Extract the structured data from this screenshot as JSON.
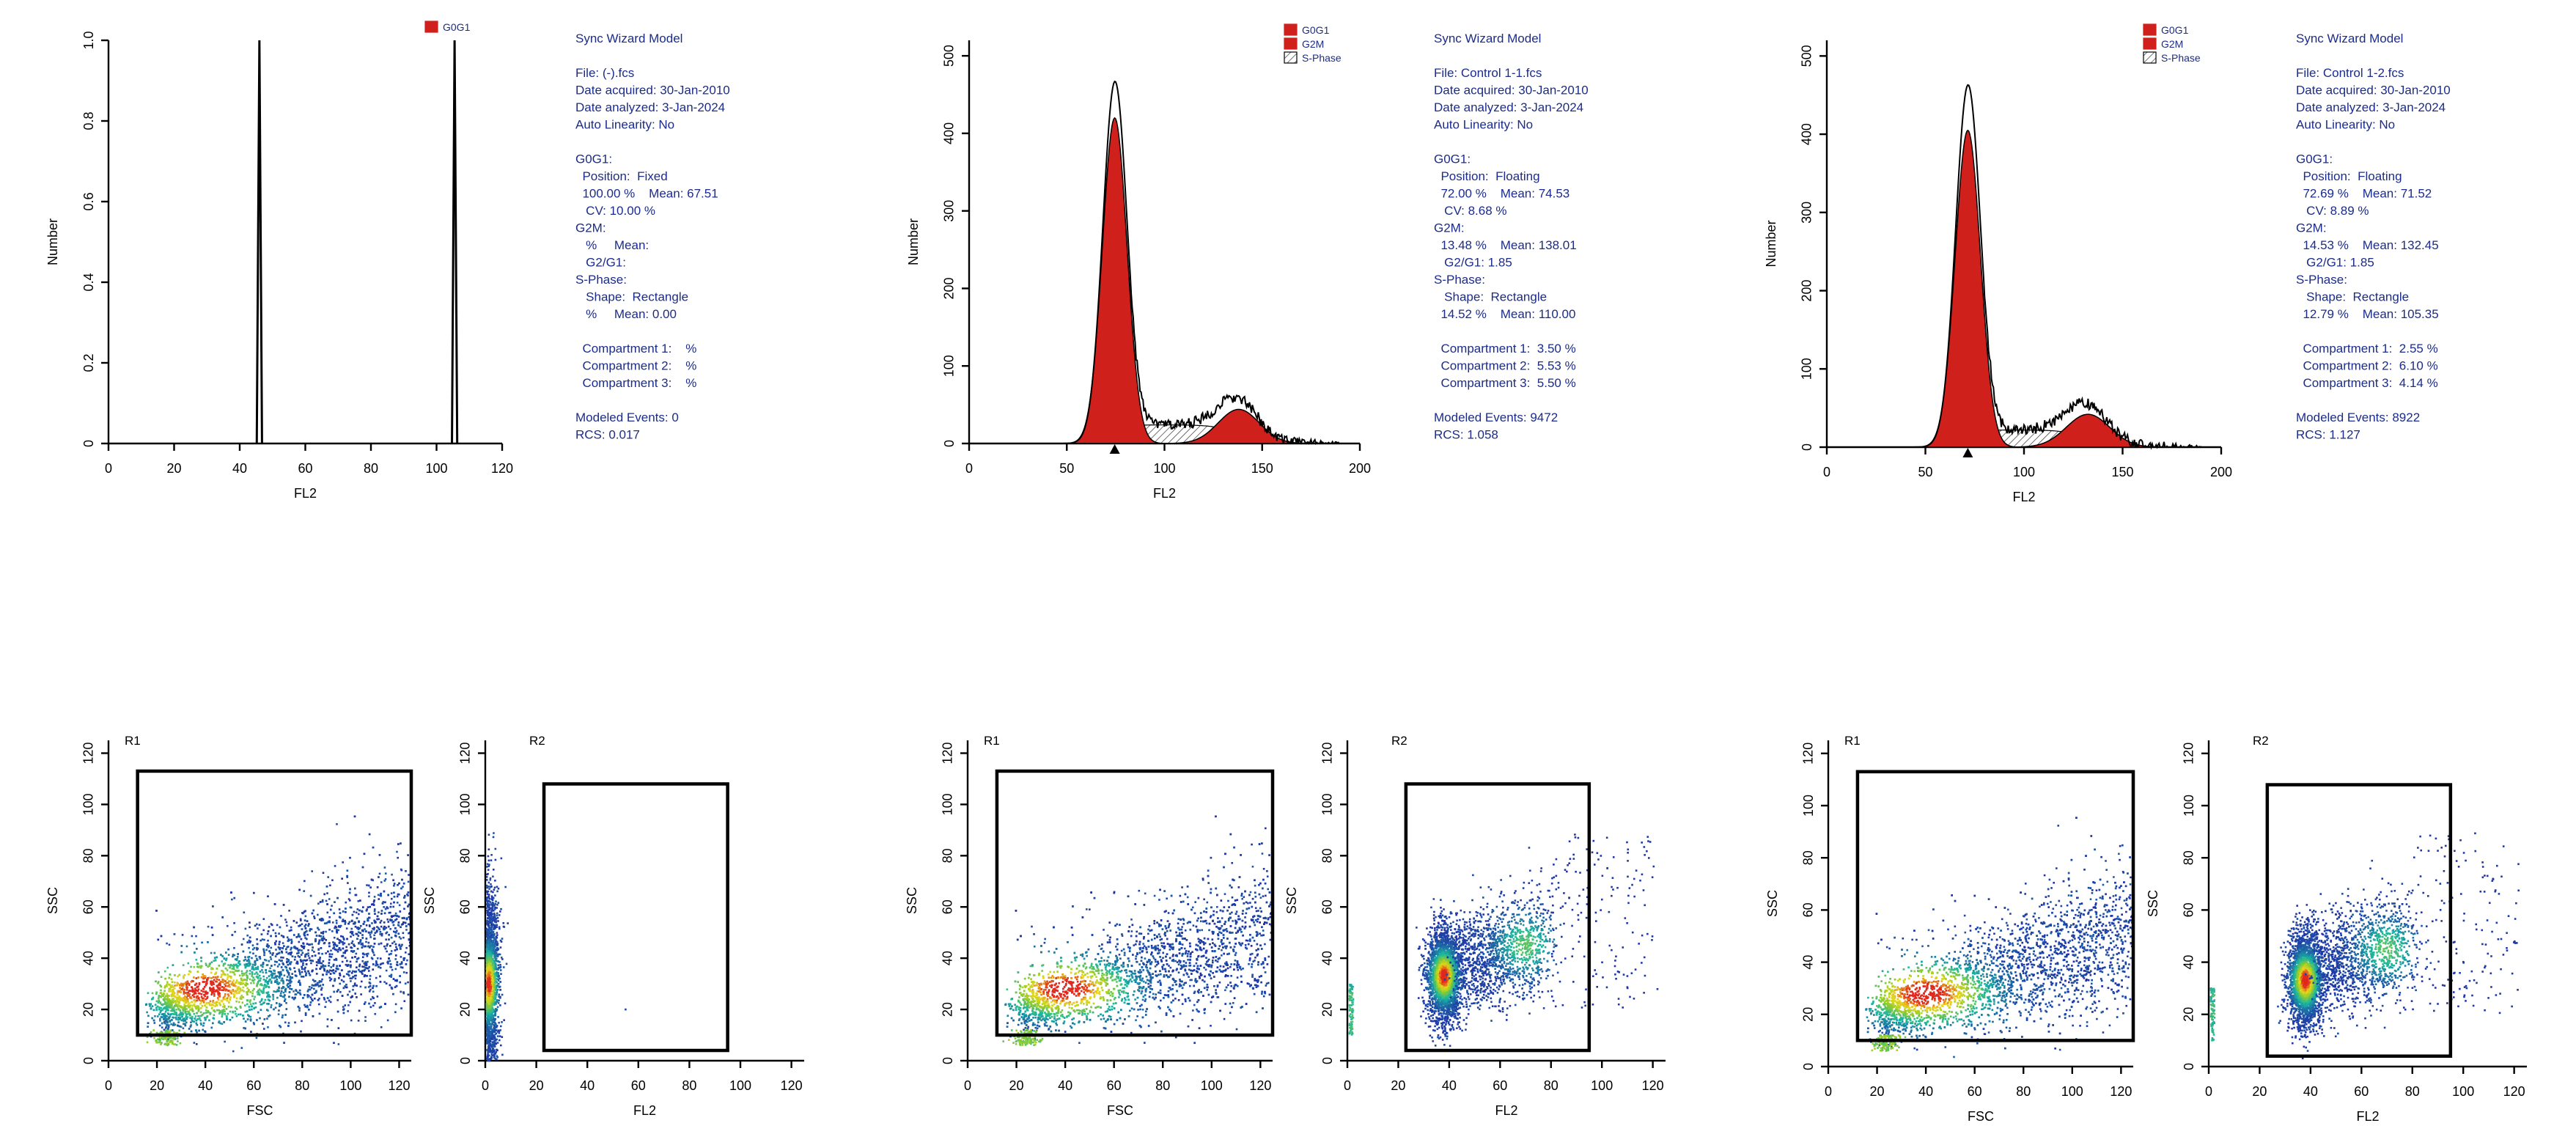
{
  "colors": {
    "g0g1": "#d0201c",
    "g2m": "#d0201c",
    "text_blue": "#1b2c8a",
    "axis": "#000000",
    "density_low": "#1f2fa8",
    "density_mid": "#1ab7a0",
    "density_high": "#e8d81c",
    "density_peak": "#e0281c"
  },
  "chart_data": [
    {
      "id": "hist-1",
      "type": "histogram",
      "xlabel": "FL2",
      "ylabel": "Number",
      "xlim": [
        0,
        120
      ],
      "ylim": [
        0,
        1.0
      ],
      "xticks": [
        0,
        20,
        40,
        60,
        80,
        100,
        120
      ],
      "yticks": [
        0,
        0.2,
        0.4,
        0.6,
        0.8,
        1.0
      ],
      "ytick_labels": [
        "0",
        "0.2",
        "0.4",
        "0.6",
        "0.8",
        "1.0"
      ],
      "legend": [
        "G0G1"
      ],
      "spikes": [
        {
          "x": 46,
          "y": 1.0
        },
        {
          "x": 105.5,
          "y": 1.0
        }
      ],
      "report": [
        "Sync Wizard Model",
        "",
        "File: (-).fcs",
        "Date acquired: 30-Jan-2010",
        "Date analyzed: 3-Jan-2024",
        "Auto Linearity: No",
        "",
        "G0G1:",
        "  Position:  Fixed",
        "  100.00 %    Mean: 67.51",
        "   CV: 10.00 %",
        "G2M:",
        "   %     Mean:",
        "   G2/G1:",
        "S-Phase:",
        "   Shape:  Rectangle",
        "   %     Mean: 0.00",
        "",
        "  Compartment 1:    %",
        "  Compartment 2:    %",
        "  Compartment 3:    %",
        "",
        "Modeled Events: 0",
        "RCS: 0.017"
      ]
    },
    {
      "id": "hist-2",
      "type": "histogram",
      "xlabel": "FL2",
      "ylabel": "Number",
      "xlim": [
        0,
        200
      ],
      "ylim": [
        0,
        520
      ],
      "xticks": [
        0,
        50,
        100,
        150,
        200
      ],
      "yticks": [
        0,
        100,
        200,
        300,
        400,
        500
      ],
      "ytick_labels": [
        "0",
        "100",
        "200",
        "300",
        "400",
        "500"
      ],
      "legend": [
        "G0G1",
        "G2M",
        "S-Phase"
      ],
      "g0g1": {
        "mean": 74.53,
        "peak": 420,
        "sd": 6.3
      },
      "g2m": {
        "mean": 138.01,
        "peak": 44,
        "sd": 10.5
      },
      "sphase": {
        "from": 74.53,
        "to": 138.01,
        "level": 24
      },
      "raw_peak": 455,
      "marker_x": 74.53,
      "report": [
        "Sync Wizard Model",
        "",
        "File: Control 1-1.fcs",
        "Date acquired: 30-Jan-2010",
        "Date analyzed: 3-Jan-2024",
        "Auto Linearity: No",
        "",
        "G0G1:",
        "  Position:  Floating",
        "  72.00 %    Mean: 74.53",
        "   CV: 8.68 %",
        "G2M:",
        "  13.48 %    Mean: 138.01",
        "   G2/G1: 1.85",
        "S-Phase:",
        "   Shape:  Rectangle",
        "  14.52 %    Mean: 110.00",
        "",
        "  Compartment 1:  3.50 %",
        "  Compartment 2:  5.53 %",
        "  Compartment 3:  5.50 %",
        "",
        "Modeled Events: 9472",
        "RCS: 1.058"
      ]
    },
    {
      "id": "hist-3",
      "type": "histogram",
      "xlabel": "FL2",
      "ylabel": "Number",
      "xlim": [
        0,
        200
      ],
      "ylim": [
        0,
        520
      ],
      "xticks": [
        0,
        50,
        100,
        150,
        200
      ],
      "yticks": [
        0,
        100,
        200,
        300,
        400,
        500
      ],
      "ytick_labels": [
        "0",
        "100",
        "200",
        "300",
        "400",
        "500"
      ],
      "legend": [
        "G0G1",
        "G2M",
        "S-Phase"
      ],
      "g0g1": {
        "mean": 71.52,
        "peak": 405,
        "sd": 6.4
      },
      "g2m": {
        "mean": 132.45,
        "peak": 42,
        "sd": 11
      },
      "sphase": {
        "from": 71.52,
        "to": 132.45,
        "level": 22
      },
      "raw_peak": 452,
      "marker_x": 71.52,
      "report": [
        "Sync Wizard Model",
        "",
        "File: Control 1-2.fcs",
        "Date acquired: 30-Jan-2010",
        "Date analyzed: 3-Jan-2024",
        "Auto Linearity: No",
        "",
        "G0G1:",
        "  Position:  Floating",
        "  72.69 %    Mean: 71.52",
        "   CV: 8.89 %",
        "G2M:",
        "  14.53 %    Mean: 132.45",
        "   G2/G1: 1.85",
        "S-Phase:",
        "   Shape:  Rectangle",
        "  12.79 %    Mean: 105.35",
        "",
        "  Compartment 1:  2.55 %",
        "  Compartment 2:  6.10 %",
        "  Compartment 3:  4.14 %",
        "",
        "Modeled Events: 8922",
        "RCS: 1.127"
      ]
    },
    {
      "id": "dot-fsc-1",
      "type": "scatter",
      "xlabel": "FSC",
      "ylabel": "SSC",
      "xlim": [
        0,
        125
      ],
      "ylim": [
        0,
        125
      ],
      "xticks": [
        0,
        20,
        40,
        60,
        80,
        100,
        120
      ],
      "yticks": [
        0,
        20,
        40,
        60,
        80,
        100,
        120
      ],
      "gate": {
        "label": "R1",
        "x": [
          12,
          125
        ],
        "y": [
          10,
          113
        ]
      },
      "population": "fsc"
    },
    {
      "id": "dot-fl2-1",
      "type": "scatter",
      "xlabel": "FL2",
      "ylabel": "SSC",
      "xlim": [
        0,
        125
      ],
      "ylim": [
        0,
        125
      ],
      "xticks": [
        0,
        20,
        40,
        60,
        80,
        100,
        120
      ],
      "yticks": [
        0,
        20,
        40,
        60,
        80,
        100,
        120
      ],
      "gate": {
        "label": "R2",
        "x": [
          23,
          95
        ],
        "y": [
          4,
          108
        ]
      },
      "population": "fl2-negative"
    },
    {
      "id": "dot-fsc-2",
      "type": "scatter",
      "xlabel": "FSC",
      "ylabel": "SSC",
      "xlim": [
        0,
        125
      ],
      "ylim": [
        0,
        125
      ],
      "xticks": [
        0,
        20,
        40,
        60,
        80,
        100,
        120
      ],
      "yticks": [
        0,
        20,
        40,
        60,
        80,
        100,
        120
      ],
      "gate": {
        "label": "R1",
        "x": [
          12,
          125
        ],
        "y": [
          10,
          113
        ]
      },
      "population": "fsc"
    },
    {
      "id": "dot-fl2-2",
      "type": "scatter",
      "xlabel": "FL2",
      "ylabel": "SSC",
      "xlim": [
        0,
        125
      ],
      "ylim": [
        0,
        125
      ],
      "xticks": [
        0,
        20,
        40,
        60,
        80,
        100,
        120
      ],
      "yticks": [
        0,
        20,
        40,
        60,
        80,
        100,
        120
      ],
      "gate": {
        "label": "R2",
        "x": [
          23,
          95
        ],
        "y": [
          4,
          108
        ]
      },
      "population": "fl2-cycle"
    },
    {
      "id": "dot-fsc-3",
      "type": "scatter",
      "xlabel": "FSC",
      "ylabel": "SSC",
      "xlim": [
        0,
        125
      ],
      "ylim": [
        0,
        125
      ],
      "xticks": [
        0,
        20,
        40,
        60,
        80,
        100,
        120
      ],
      "yticks": [
        0,
        20,
        40,
        60,
        80,
        100,
        120
      ],
      "gate": {
        "label": "R1",
        "x": [
          12,
          125
        ],
        "y": [
          10,
          113
        ]
      },
      "population": "fsc"
    },
    {
      "id": "dot-fl2-3",
      "type": "scatter",
      "xlabel": "FL2",
      "ylabel": "SSC",
      "xlim": [
        0,
        125
      ],
      "ylim": [
        0,
        125
      ],
      "xticks": [
        0,
        20,
        40,
        60,
        80,
        100,
        120
      ],
      "yticks": [
        0,
        20,
        40,
        60,
        80,
        100,
        120
      ],
      "gate": {
        "label": "R2",
        "x": [
          23,
          95
        ],
        "y": [
          4,
          108
        ]
      },
      "population": "fl2-cycle"
    }
  ]
}
